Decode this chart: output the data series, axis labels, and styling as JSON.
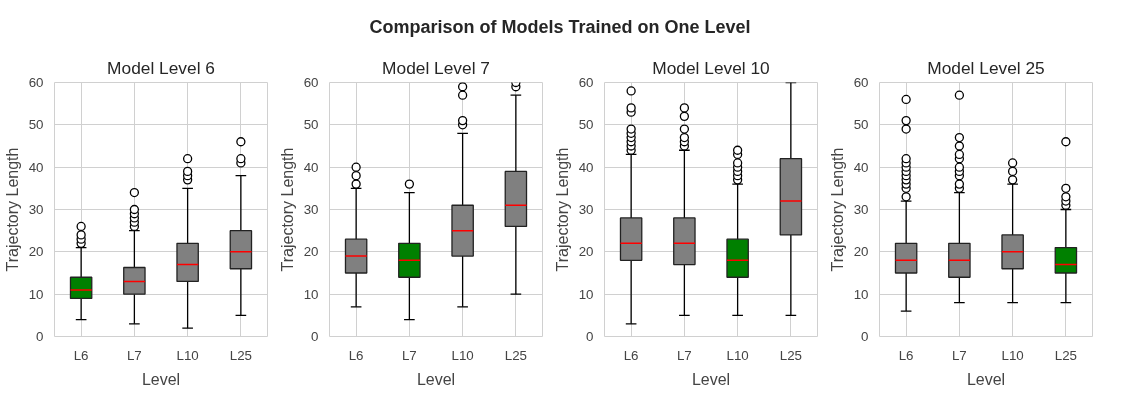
{
  "chart_data": [
    {
      "type": "box",
      "title": "Model Level 6",
      "xlabel": "Level",
      "ylabel": "Trajectory Length",
      "annotations": [
        "Comparison of Models Trained on One Level"
      ],
      "categories": [
        "L6",
        "L7",
        "L10",
        "L25"
      ],
      "colors": [
        "#008000",
        "#808080",
        "#808080",
        "#808080"
      ],
      "ylim": [
        0,
        60
      ],
      "yticks": [
        0,
        10,
        20,
        30,
        40,
        50,
        60
      ],
      "grid": true,
      "marker": "circle",
      "boxes": [
        {
          "low": 4,
          "q1": 9,
          "median": 11,
          "q3": 14,
          "high": 21,
          "outliers": [
            22,
            23,
            24,
            26
          ]
        },
        {
          "low": 3,
          "q1": 10,
          "median": 13,
          "q3": 16.3,
          "high": 25,
          "outliers": [
            26,
            27,
            28,
            29,
            30,
            34
          ]
        },
        {
          "low": 2,
          "q1": 13,
          "median": 17,
          "q3": 22,
          "high": 35,
          "outliers": [
            37,
            38,
            39,
            42
          ]
        },
        {
          "low": 5,
          "q1": 16,
          "median": 20,
          "q3": 25,
          "high": 38,
          "outliers": [
            41,
            42,
            46
          ]
        }
      ]
    },
    {
      "type": "box",
      "title": "Model Level 7",
      "xlabel": "Level",
      "ylabel": "Trajectory Length",
      "categories": [
        "L6",
        "L7",
        "L10",
        "L25"
      ],
      "colors": [
        "#808080",
        "#008000",
        "#808080",
        "#808080"
      ],
      "ylim": [
        0,
        60
      ],
      "yticks": [
        0,
        10,
        20,
        30,
        40,
        50,
        60
      ],
      "grid": true,
      "marker": "circle",
      "boxes": [
        {
          "low": 7,
          "q1": 15,
          "median": 19,
          "q3": 23,
          "high": 35,
          "outliers": [
            36,
            38,
            40
          ]
        },
        {
          "low": 4,
          "q1": 14,
          "median": 18,
          "q3": 22,
          "high": 34,
          "outliers": [
            36
          ]
        },
        {
          "low": 7,
          "q1": 19,
          "median": 25,
          "q3": 31,
          "high": 48,
          "outliers": [
            50,
            51,
            57,
            59
          ]
        },
        {
          "low": 10,
          "q1": 26,
          "median": 31,
          "q3": 39,
          "high": 57,
          "outliers": [
            59,
            60
          ]
        }
      ]
    },
    {
      "type": "box",
      "title": "Model Level 10",
      "xlabel": "Level",
      "ylabel": "Trajectory Length",
      "categories": [
        "L6",
        "L7",
        "L10",
        "L25"
      ],
      "colors": [
        "#808080",
        "#808080",
        "#008000",
        "#808080"
      ],
      "ylim": [
        0,
        60
      ],
      "yticks": [
        0,
        10,
        20,
        30,
        40,
        50,
        60
      ],
      "grid": true,
      "marker": "circle",
      "boxes": [
        {
          "low": 3,
          "q1": 18,
          "median": 22,
          "q3": 28,
          "high": 43,
          "outliers": [
            44,
            45,
            46,
            47,
            48,
            49,
            53,
            54,
            58
          ]
        },
        {
          "low": 5,
          "q1": 17,
          "median": 22,
          "q3": 28,
          "high": 44,
          "outliers": [
            45,
            46,
            47,
            49,
            52,
            54
          ]
        },
        {
          "low": 5,
          "q1": 14,
          "median": 18,
          "q3": 23,
          "high": 36,
          "outliers": [
            37,
            38,
            39,
            40,
            41,
            43,
            44
          ]
        },
        {
          "low": 5,
          "q1": 24,
          "median": 32,
          "q3": 42,
          "high": 60
        }
      ]
    },
    {
      "type": "box",
      "title": "Model Level 25",
      "xlabel": "Level",
      "ylabel": "Trajectory Length",
      "categories": [
        "L6",
        "L7",
        "L10",
        "L25"
      ],
      "colors": [
        "#808080",
        "#808080",
        "#808080",
        "#008000"
      ],
      "ylim": [
        0,
        60
      ],
      "yticks": [
        0,
        10,
        20,
        30,
        40,
        50,
        60
      ],
      "grid": true,
      "marker": "circle",
      "boxes": [
        {
          "low": 6,
          "q1": 15,
          "median": 18,
          "q3": 22,
          "high": 32,
          "outliers": [
            33,
            35,
            36,
            37,
            38,
            39,
            40,
            41,
            42,
            49,
            51,
            56
          ]
        },
        {
          "low": 8,
          "q1": 14,
          "median": 18,
          "q3": 22,
          "high": 34,
          "outliers": [
            35,
            36,
            38,
            39,
            40,
            42,
            43,
            45,
            47,
            57
          ]
        },
        {
          "low": 8,
          "q1": 16,
          "median": 20,
          "q3": 24,
          "high": 36,
          "outliers": [
            37,
            39,
            41
          ]
        },
        {
          "low": 8,
          "q1": 15,
          "median": 17,
          "q3": 21,
          "high": 30,
          "outliers": [
            31,
            32,
            33,
            35,
            46
          ]
        }
      ]
    }
  ]
}
